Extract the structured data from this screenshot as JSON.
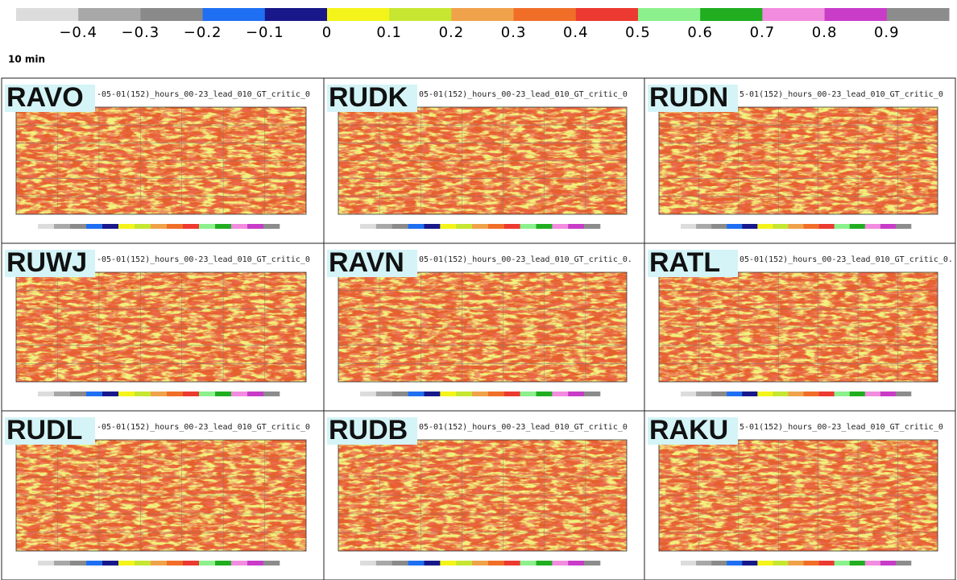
{
  "colorbar": {
    "labels": [
      "−0.4",
      "−0.3",
      "−0.2",
      "−0.1",
      "0",
      "0.1",
      "0.2",
      "0.3",
      "0.4",
      "0.5",
      "0.6",
      "0.7",
      "0.8",
      "0.9"
    ],
    "colors": [
      "#dcdcdc",
      "#a8a8a8",
      "#8a8a8a",
      "#1f6ff2",
      "#18188a",
      "#f4f41a",
      "#c6e632",
      "#f0a24a",
      "#f06e28",
      "#ec3a30",
      "#8cf08c",
      "#20ae20",
      "#f28cde",
      "#c83cc8",
      "#8c8c8c"
    ]
  },
  "subtitle": "10 min",
  "panels": [
    {
      "station": "RAVO",
      "caption": "-05-01(152)_hours_00-23_lead_010_GT_critic_0"
    },
    {
      "station": "RUDK",
      "caption": "05-01(152)_hours_00-23_lead_010_GT_critic_0"
    },
    {
      "station": "RUDN",
      "caption": "5-01(152)_hours_00-23_lead_010_GT_critic_0"
    },
    {
      "station": "RUWJ",
      "caption": "-05-01(152)_hours_00-23_lead_010_GT_critic_0"
    },
    {
      "station": "RAVN",
      "caption": "05-01(152)_hours_00-23_lead_010_GT_critic_0."
    },
    {
      "station": "RATL",
      "caption": "05-01(152)_hours_00-23_lead_010_GT_critic_0."
    },
    {
      "station": "RUDL",
      "caption": "-05-01(152)_hours_00-23_lead_010_GT_critic_0"
    },
    {
      "station": "RUDB",
      "caption": "05-01(152)_hours_00-23_lead_010_GT_critic_0"
    },
    {
      "station": "RAKU",
      "caption": "5-01(152)_hours_00-23_lead_010_GT_critic_0"
    }
  ]
}
